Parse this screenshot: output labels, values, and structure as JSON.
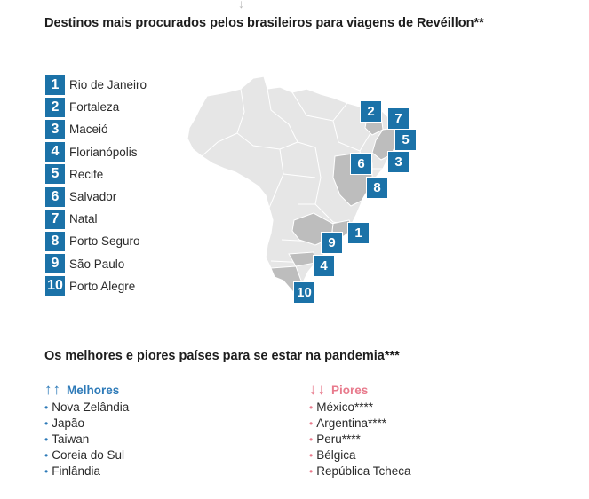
{
  "title": "Destinos mais procurados pelos brasileiros para viagens de Revéillon**",
  "ranking": [
    {
      "rank": "1",
      "city": "Rio de Janeiro"
    },
    {
      "rank": "2",
      "city": "Fortaleza"
    },
    {
      "rank": "3",
      "city": "Maceió"
    },
    {
      "rank": "4",
      "city": "Florianópolis"
    },
    {
      "rank": "5",
      "city": "Recife"
    },
    {
      "rank": "6",
      "city": "Salvador"
    },
    {
      "rank": "7",
      "city": "Natal"
    },
    {
      "rank": "8",
      "city": "Porto Seguro"
    },
    {
      "rank": "9",
      "city": "São Paulo"
    },
    {
      "rank": "10",
      "city": "Porto Alegre"
    }
  ],
  "map": {
    "country": "Brasil",
    "marker_labels": [
      "1",
      "2",
      "3",
      "4",
      "5",
      "6",
      "7",
      "8",
      "9",
      "10"
    ]
  },
  "pandemic": {
    "title": "Os melhores e piores países para se estar na pandemia***",
    "best": {
      "label": "Melhores",
      "countries": [
        "Nova Zelândia",
        "Japão",
        "Taiwan",
        "Coreia do Sul",
        "Finlândia"
      ]
    },
    "worst": {
      "label": "Piores",
      "countries": [
        "México****",
        "Argentina****",
        "Peru****",
        "Bélgica",
        "República Tcheca"
      ]
    }
  },
  "colors": {
    "accent": "#1b72a8",
    "best": "#2d7ab8",
    "worst": "#e87a8c",
    "map_fill": "#e6e6e6",
    "map_highlight": "#bdbdbd"
  }
}
